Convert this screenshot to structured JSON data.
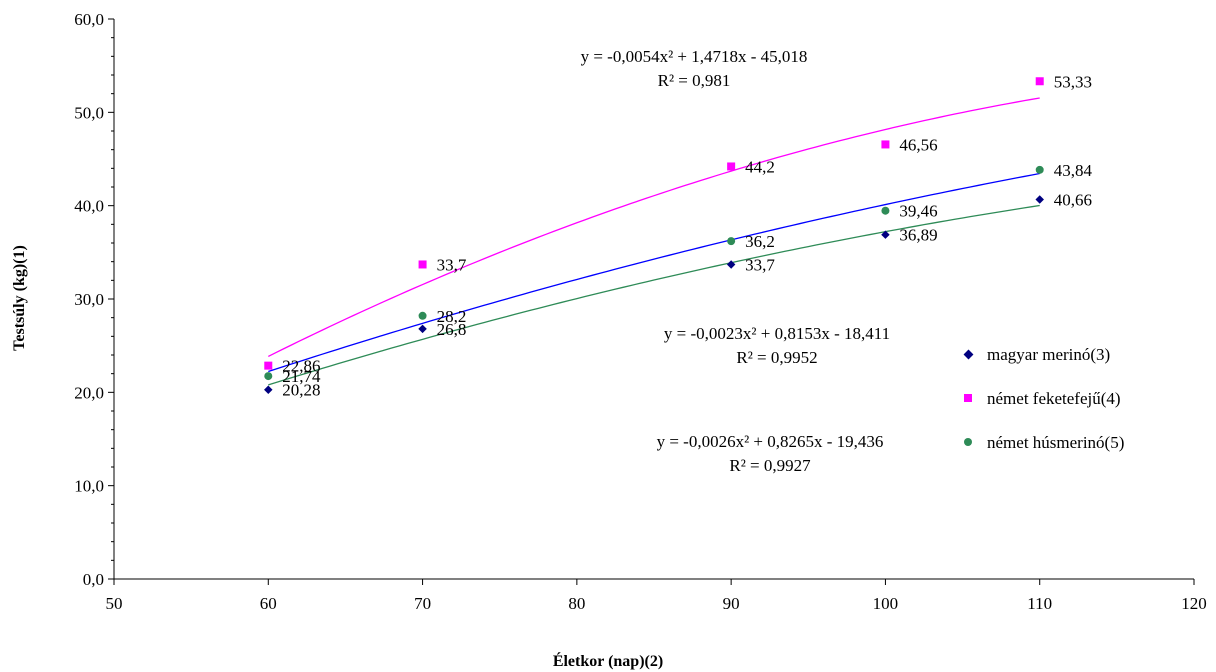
{
  "chart_data": {
    "type": "scatter",
    "xlabel": "Életkor (nap)(2)",
    "ylabel": "Testsúly (kg)(1)",
    "xlim": [
      50,
      120
    ],
    "ylim": [
      0,
      60
    ],
    "x_ticks": [
      "50",
      "60",
      "70",
      "80",
      "90",
      "100",
      "110",
      "120"
    ],
    "y_ticks": [
      "0,0",
      "10,0",
      "20,0",
      "30,0",
      "40,0",
      "50,0",
      "60,0"
    ],
    "grid": false,
    "legend_position": "right",
    "series": [
      {
        "name": "magyar merinó(3)",
        "color": "#000080",
        "trend_color": "#0000ff",
        "marker": "diamond",
        "x": [
          60,
          70,
          90,
          100,
          110
        ],
        "y": [
          20.28,
          26.8,
          33.7,
          36.89,
          40.66
        ],
        "labels": [
          "20,28",
          "26,8",
          "33,7",
          "36,89",
          "40,66"
        ],
        "trendline": {
          "a": -0.0023,
          "b": 0.8153,
          "c": -18.411
        },
        "equation": "y = -0,0023x² + 0,8153x - 18,411",
        "r2": "R² = 0,9952"
      },
      {
        "name": "német feketefejű(4)",
        "color": "#ff00ff",
        "trend_color": "#ff00ff",
        "marker": "square",
        "x": [
          60,
          70,
          90,
          100,
          110
        ],
        "y": [
          22.86,
          33.7,
          44.2,
          46.56,
          53.33
        ],
        "labels": [
          "22,86",
          "33,7",
          "44,2",
          "46,56",
          "53,33"
        ],
        "trendline": {
          "a": -0.0054,
          "b": 1.4718,
          "c": -45.018
        },
        "equation": "y = -0,0054x² + 1,4718x - 45,018",
        "r2": "R² = 0,981"
      },
      {
        "name": "német húsmerinó(5)",
        "color": "#2e8b57",
        "trend_color": "#2e8b57",
        "marker": "circle",
        "x": [
          60,
          70,
          90,
          100,
          110
        ],
        "y": [
          21.74,
          28.2,
          36.2,
          39.46,
          43.84
        ],
        "labels": [
          "21,74",
          "28,2",
          "36,2",
          "39,46",
          "43,84"
        ],
        "trendline": {
          "a": -0.0026,
          "b": 0.8265,
          "c": -19.436
        },
        "equation": "y = -0,0026x² + 0,8265x - 19,436",
        "r2": "R² = 0,9927"
      }
    ]
  }
}
